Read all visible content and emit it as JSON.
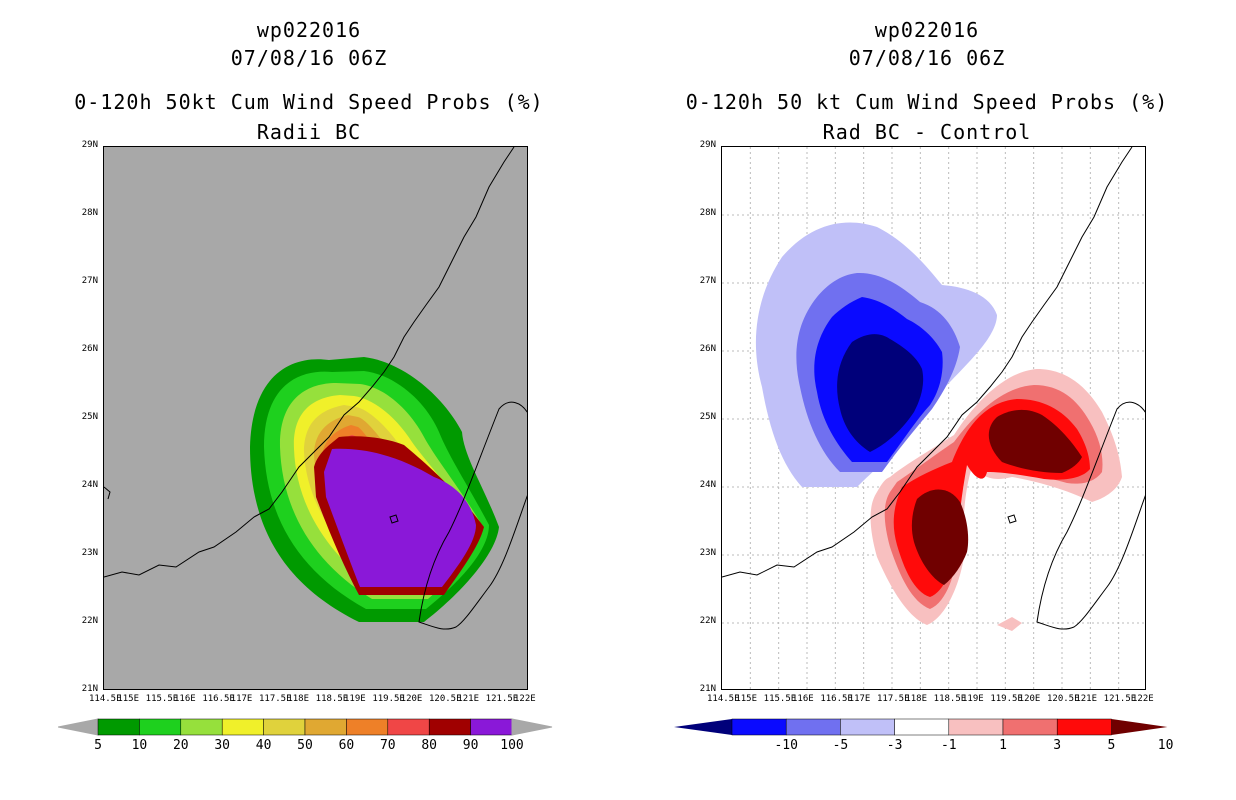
{
  "left_panel": {
    "storm_id": "wp022016",
    "datetime": "07/08/16 06Z",
    "title": "0-120h 50kt Cum Wind Speed Probs (%)",
    "subtitle": "Radii BC",
    "colorbar_labels": [
      "5",
      "10",
      "20",
      "30",
      "40",
      "50",
      "60",
      "70",
      "80",
      "90",
      "100"
    ],
    "colorbar_colors": [
      "#009a00",
      "#1ed01e",
      "#96e03c",
      "#f0f02a",
      "#e0d23c",
      "#e0a832",
      "#ee8028",
      "#f04646",
      "#a00000",
      "#8a18d8"
    ],
    "background_color": "#a8a8a8"
  },
  "right_panel": {
    "storm_id": "wp022016",
    "datetime": "07/08/16 06Z",
    "title": "0-120h 50 kt Cum Wind Speed Probs (%)",
    "subtitle": "Rad BC - Control",
    "colorbar_labels": [
      "-10",
      "-5",
      "-3",
      "-1",
      "1",
      "3",
      "5",
      "10"
    ],
    "colorbar_colors": [
      "#00007a",
      "#0a0aff",
      "#7070f0",
      "#c0c0f8",
      "#ffffff",
      "#f8c0c0",
      "#f07070",
      "#ff0a0a",
      "#700000"
    ]
  },
  "axes": {
    "lat_labels": [
      "29N",
      "28N",
      "27N",
      "26N",
      "25N",
      "24N",
      "23N",
      "22N",
      "21N"
    ],
    "lon_labels": [
      "114.5E",
      "115E",
      "115.5E",
      "116E",
      "116.5E",
      "117E",
      "117.5E",
      "118E",
      "118.5E",
      "119E",
      "119.5E",
      "120E",
      "120.5E",
      "121E",
      "121.5E",
      "122E"
    ]
  }
}
